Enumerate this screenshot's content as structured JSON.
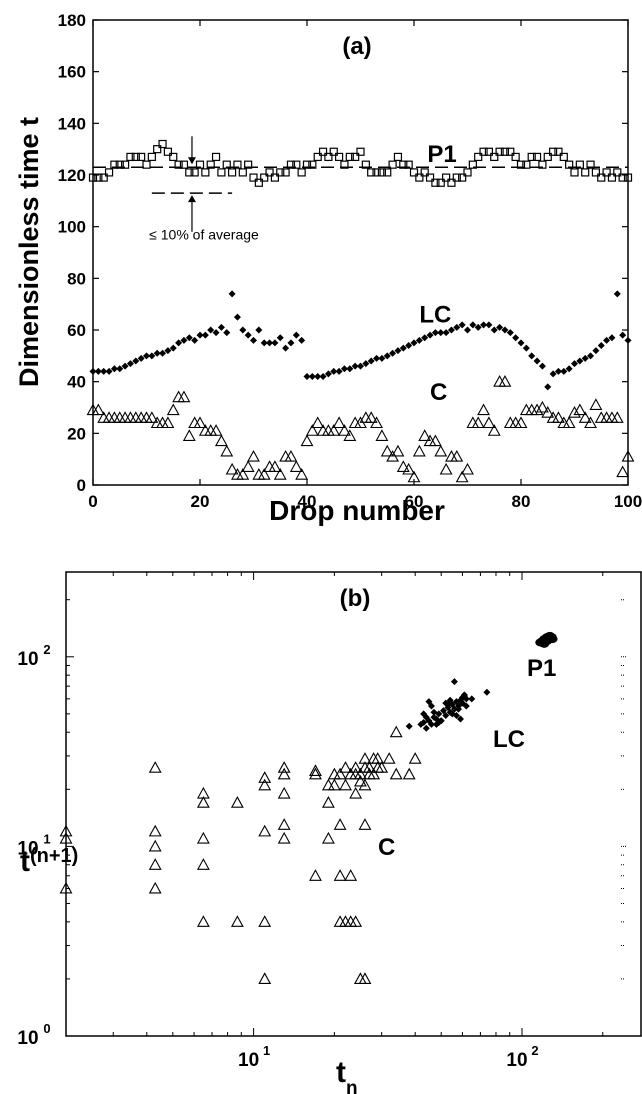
{
  "chart_data": [
    {
      "type": "scatter",
      "title": "(a)",
      "xlabel": "Drop number",
      "ylabel": "Dimensionless time t",
      "xlim": [
        0,
        100
      ],
      "ylim": [
        0,
        180
      ],
      "x_ticks": [
        "0",
        "20",
        "40",
        "60",
        "80",
        "100"
      ],
      "y_ticks": [
        "0",
        "20",
        "40",
        "60",
        "80",
        "100",
        "120",
        "140",
        "160",
        "180"
      ],
      "grid": false,
      "reference_line": {
        "y": 123,
        "style": "dashed"
      },
      "annotation": "≤ 10% of average",
      "series": [
        {
          "name": "P1",
          "marker": "square",
          "x": [
            0,
            1,
            2,
            3,
            4,
            5,
            6,
            7,
            8,
            9,
            10,
            11,
            12,
            13,
            14,
            15,
            16,
            17,
            18,
            19,
            20,
            21,
            22,
            23,
            24,
            25,
            26,
            27,
            28,
            29,
            30,
            31,
            32,
            33,
            34,
            35,
            36,
            37,
            38,
            39,
            40,
            41,
            42,
            43,
            44,
            45,
            46,
            47,
            48,
            49,
            50,
            51,
            52,
            53,
            54,
            55,
            56,
            57,
            58,
            59,
            60,
            61,
            62,
            63,
            64,
            65,
            66,
            67,
            68,
            69,
            70,
            71,
            72,
            73,
            74,
            75,
            76,
            77,
            78,
            79,
            80,
            81,
            82,
            83,
            84,
            85,
            86,
            87,
            88,
            89,
            90,
            91,
            92,
            93,
            94,
            95,
            96,
            97,
            98,
            99,
            100
          ],
          "values": [
            119,
            119,
            119,
            121,
            124,
            124,
            124,
            127,
            127,
            127,
            124,
            127,
            130,
            132,
            129,
            127,
            124,
            124,
            121,
            121,
            124,
            121,
            124,
            127,
            121,
            124,
            121,
            124,
            121,
            124,
            119,
            117,
            119,
            121,
            119,
            121,
            121,
            124,
            124,
            121,
            124,
            124,
            127,
            129,
            127,
            129,
            127,
            124,
            127,
            127,
            129,
            124,
            121,
            121,
            121,
            121,
            124,
            127,
            124,
            124,
            121,
            119,
            121,
            119,
            117,
            117,
            119,
            117,
            119,
            119,
            121,
            124,
            127,
            129,
            129,
            127,
            129,
            129,
            129,
            127,
            124,
            124,
            127,
            127,
            124,
            127,
            129,
            129,
            127,
            124,
            121,
            124,
            121,
            124,
            121,
            119,
            121,
            119,
            121,
            119,
            119
          ]
        },
        {
          "name": "LC",
          "marker": "diamond",
          "x": [
            0,
            1,
            2,
            3,
            4,
            5,
            6,
            7,
            8,
            9,
            10,
            11,
            12,
            13,
            14,
            15,
            16,
            17,
            18,
            19,
            20,
            21,
            22,
            23,
            24,
            25,
            26,
            27,
            28,
            29,
            30,
            31,
            32,
            33,
            34,
            35,
            36,
            37,
            38,
            39,
            40,
            41,
            42,
            43,
            44,
            45,
            46,
            47,
            48,
            49,
            50,
            51,
            52,
            53,
            54,
            55,
            56,
            57,
            58,
            59,
            60,
            61,
            62,
            63,
            64,
            65,
            66,
            67,
            68,
            69,
            70,
            71,
            72,
            73,
            74,
            75,
            76,
            77,
            78,
            79,
            80,
            81,
            82,
            83,
            84,
            85,
            86,
            87,
            88,
            89,
            90,
            91,
            92,
            93,
            94,
            95,
            96,
            97,
            98,
            99,
            100
          ],
          "values": [
            44,
            44,
            44,
            44,
            45,
            45,
            46,
            47,
            48,
            49,
            50,
            50,
            51,
            51,
            52,
            53,
            55,
            56,
            57,
            56,
            58,
            58,
            60,
            59,
            61,
            59,
            74,
            65,
            60,
            58,
            56,
            60,
            55,
            55,
            55,
            57,
            53,
            55,
            58,
            56,
            42,
            42,
            42,
            42,
            43,
            44,
            44,
            45,
            45,
            46,
            46,
            47,
            48,
            49,
            49,
            50,
            51,
            52,
            53,
            54,
            55,
            56,
            57,
            58,
            59,
            59,
            59,
            60,
            61,
            62,
            60,
            62,
            61,
            62,
            62,
            60,
            61,
            60,
            59,
            57,
            55,
            53,
            50,
            48,
            46,
            38,
            43,
            44,
            44,
            45,
            47,
            48,
            49,
            50,
            52,
            54,
            56,
            57,
            74,
            58,
            56
          ]
        },
        {
          "name": "C",
          "marker": "triangle",
          "x": [
            0,
            1,
            2,
            3,
            4,
            5,
            6,
            7,
            8,
            9,
            10,
            11,
            12,
            13,
            14,
            15,
            16,
            17,
            18,
            19,
            20,
            21,
            22,
            23,
            24,
            25,
            26,
            27,
            28,
            29,
            30,
            31,
            32,
            33,
            34,
            35,
            36,
            37,
            38,
            39,
            40,
            41,
            42,
            43,
            44,
            45,
            46,
            47,
            48,
            49,
            50,
            51,
            52,
            53,
            54,
            55,
            56,
            57,
            58,
            59,
            60,
            61,
            62,
            63,
            64,
            65,
            66,
            67,
            68,
            69,
            70,
            71,
            72,
            73,
            74,
            75,
            76,
            77,
            78,
            79,
            80,
            81,
            82,
            83,
            84,
            85,
            86,
            87,
            88,
            89,
            90,
            91,
            92,
            93,
            94,
            95,
            96,
            97,
            98,
            99,
            100
          ],
          "values": [
            29,
            29,
            26,
            26,
            26,
            26,
            26,
            26,
            26,
            26,
            26,
            26,
            24,
            24,
            24,
            29,
            34,
            34,
            19,
            24,
            24,
            21,
            21,
            21,
            17,
            13,
            6,
            4,
            4,
            7,
            11,
            4,
            4,
            7,
            7,
            4,
            11,
            11,
            7,
            4,
            17,
            21,
            24,
            21,
            21,
            21,
            24,
            21,
            19,
            24,
            24,
            26,
            26,
            24,
            19,
            13,
            11,
            13,
            7,
            6,
            3,
            13,
            19,
            17,
            17,
            13,
            6,
            11,
            11,
            3,
            6,
            24,
            24,
            29,
            24,
            21,
            40,
            40,
            24,
            24,
            24,
            29,
            29,
            29,
            30,
            28,
            26,
            26,
            24,
            24,
            28,
            29,
            26,
            24,
            31,
            26,
            26,
            26,
            26,
            5,
            11
          ]
        }
      ]
    },
    {
      "type": "scatter",
      "title": "(b)",
      "xlabel": "t",
      "xlabel_sub": "n",
      "ylabel": "t",
      "ylabel_sub": "(n+1)",
      "x_scale": "log",
      "y_scale": "log",
      "xlim": [
        2,
        280
      ],
      "ylim": [
        1,
        280
      ],
      "x_ticks": [
        {
          "value": 10,
          "base": "10",
          "exp": "1"
        },
        {
          "value": 100,
          "base": "10",
          "exp": "2"
        }
      ],
      "y_ticks": [
        {
          "value": 1,
          "base": "10",
          "exp": "0"
        },
        {
          "value": 10,
          "base": "10",
          "exp": "1"
        },
        {
          "value": 100,
          "base": "10",
          "exp": "2"
        }
      ],
      "grid": false,
      "series": [
        {
          "name": "P1",
          "marker": "cluster",
          "x": [
            117,
            119,
            121,
            121,
            124,
            124,
            127,
            127,
            129,
            130
          ],
          "y": [
            119,
            121,
            117,
            124,
            121,
            127,
            124,
            129,
            127,
            124
          ]
        },
        {
          "name": "LC",
          "marker": "diamond",
          "x": [
            42,
            43,
            44,
            45,
            46,
            47,
            48,
            49,
            50,
            51,
            52,
            53,
            54,
            55,
            56,
            57,
            58,
            59,
            60,
            61,
            62,
            44,
            47,
            50,
            53,
            55,
            58,
            60,
            62,
            65,
            74,
            38,
            56,
            59,
            45,
            48,
            52,
            57,
            61,
            43,
            46,
            49,
            54
          ],
          "y": [
            44,
            45,
            42,
            46,
            44,
            48,
            47,
            50,
            46,
            52,
            49,
            54,
            51,
            56,
            53,
            58,
            55,
            59,
            57,
            62,
            60,
            48,
            51,
            46,
            56,
            50,
            53,
            61,
            55,
            60,
            65,
            43,
            74,
            47,
            58,
            44,
            57,
            49,
            63,
            50,
            55,
            45,
            59
          ]
        },
        {
          "name": "C",
          "marker": "triangle",
          "x": [
            2,
            2,
            2,
            4.3,
            4.3,
            4.3,
            4.3,
            4.3,
            6.5,
            6.5,
            6.5,
            6.5,
            6.5,
            8.7,
            8.7,
            11,
            11,
            11,
            11,
            11,
            13,
            13,
            13,
            13,
            13,
            17,
            17,
            17,
            19,
            19,
            19,
            20,
            20,
            21,
            21,
            21,
            21,
            22,
            22,
            22,
            23,
            23,
            23,
            24,
            24,
            24,
            24,
            25,
            25,
            25,
            26,
            26,
            26,
            26,
            26,
            27,
            27,
            28,
            28,
            29,
            29,
            30,
            32,
            34,
            34,
            38,
            40
          ],
          "y": [
            6,
            11,
            12,
            6,
            8,
            10,
            12,
            26,
            4,
            8,
            11,
            17,
            19,
            4,
            17,
            2,
            4,
            12,
            23,
            21,
            11,
            13,
            19,
            24,
            26,
            7,
            24,
            25,
            11,
            17,
            21,
            24,
            21,
            4,
            7,
            13,
            24,
            4,
            21,
            26,
            4,
            7,
            24,
            4,
            19,
            24,
            26,
            2,
            22,
            24,
            2,
            13,
            21,
            26,
            29,
            24,
            26,
            24,
            29,
            26,
            29,
            26,
            29,
            24,
            40,
            24,
            29
          ]
        }
      ],
      "labels": [
        "P1",
        "LC",
        "C"
      ]
    }
  ]
}
